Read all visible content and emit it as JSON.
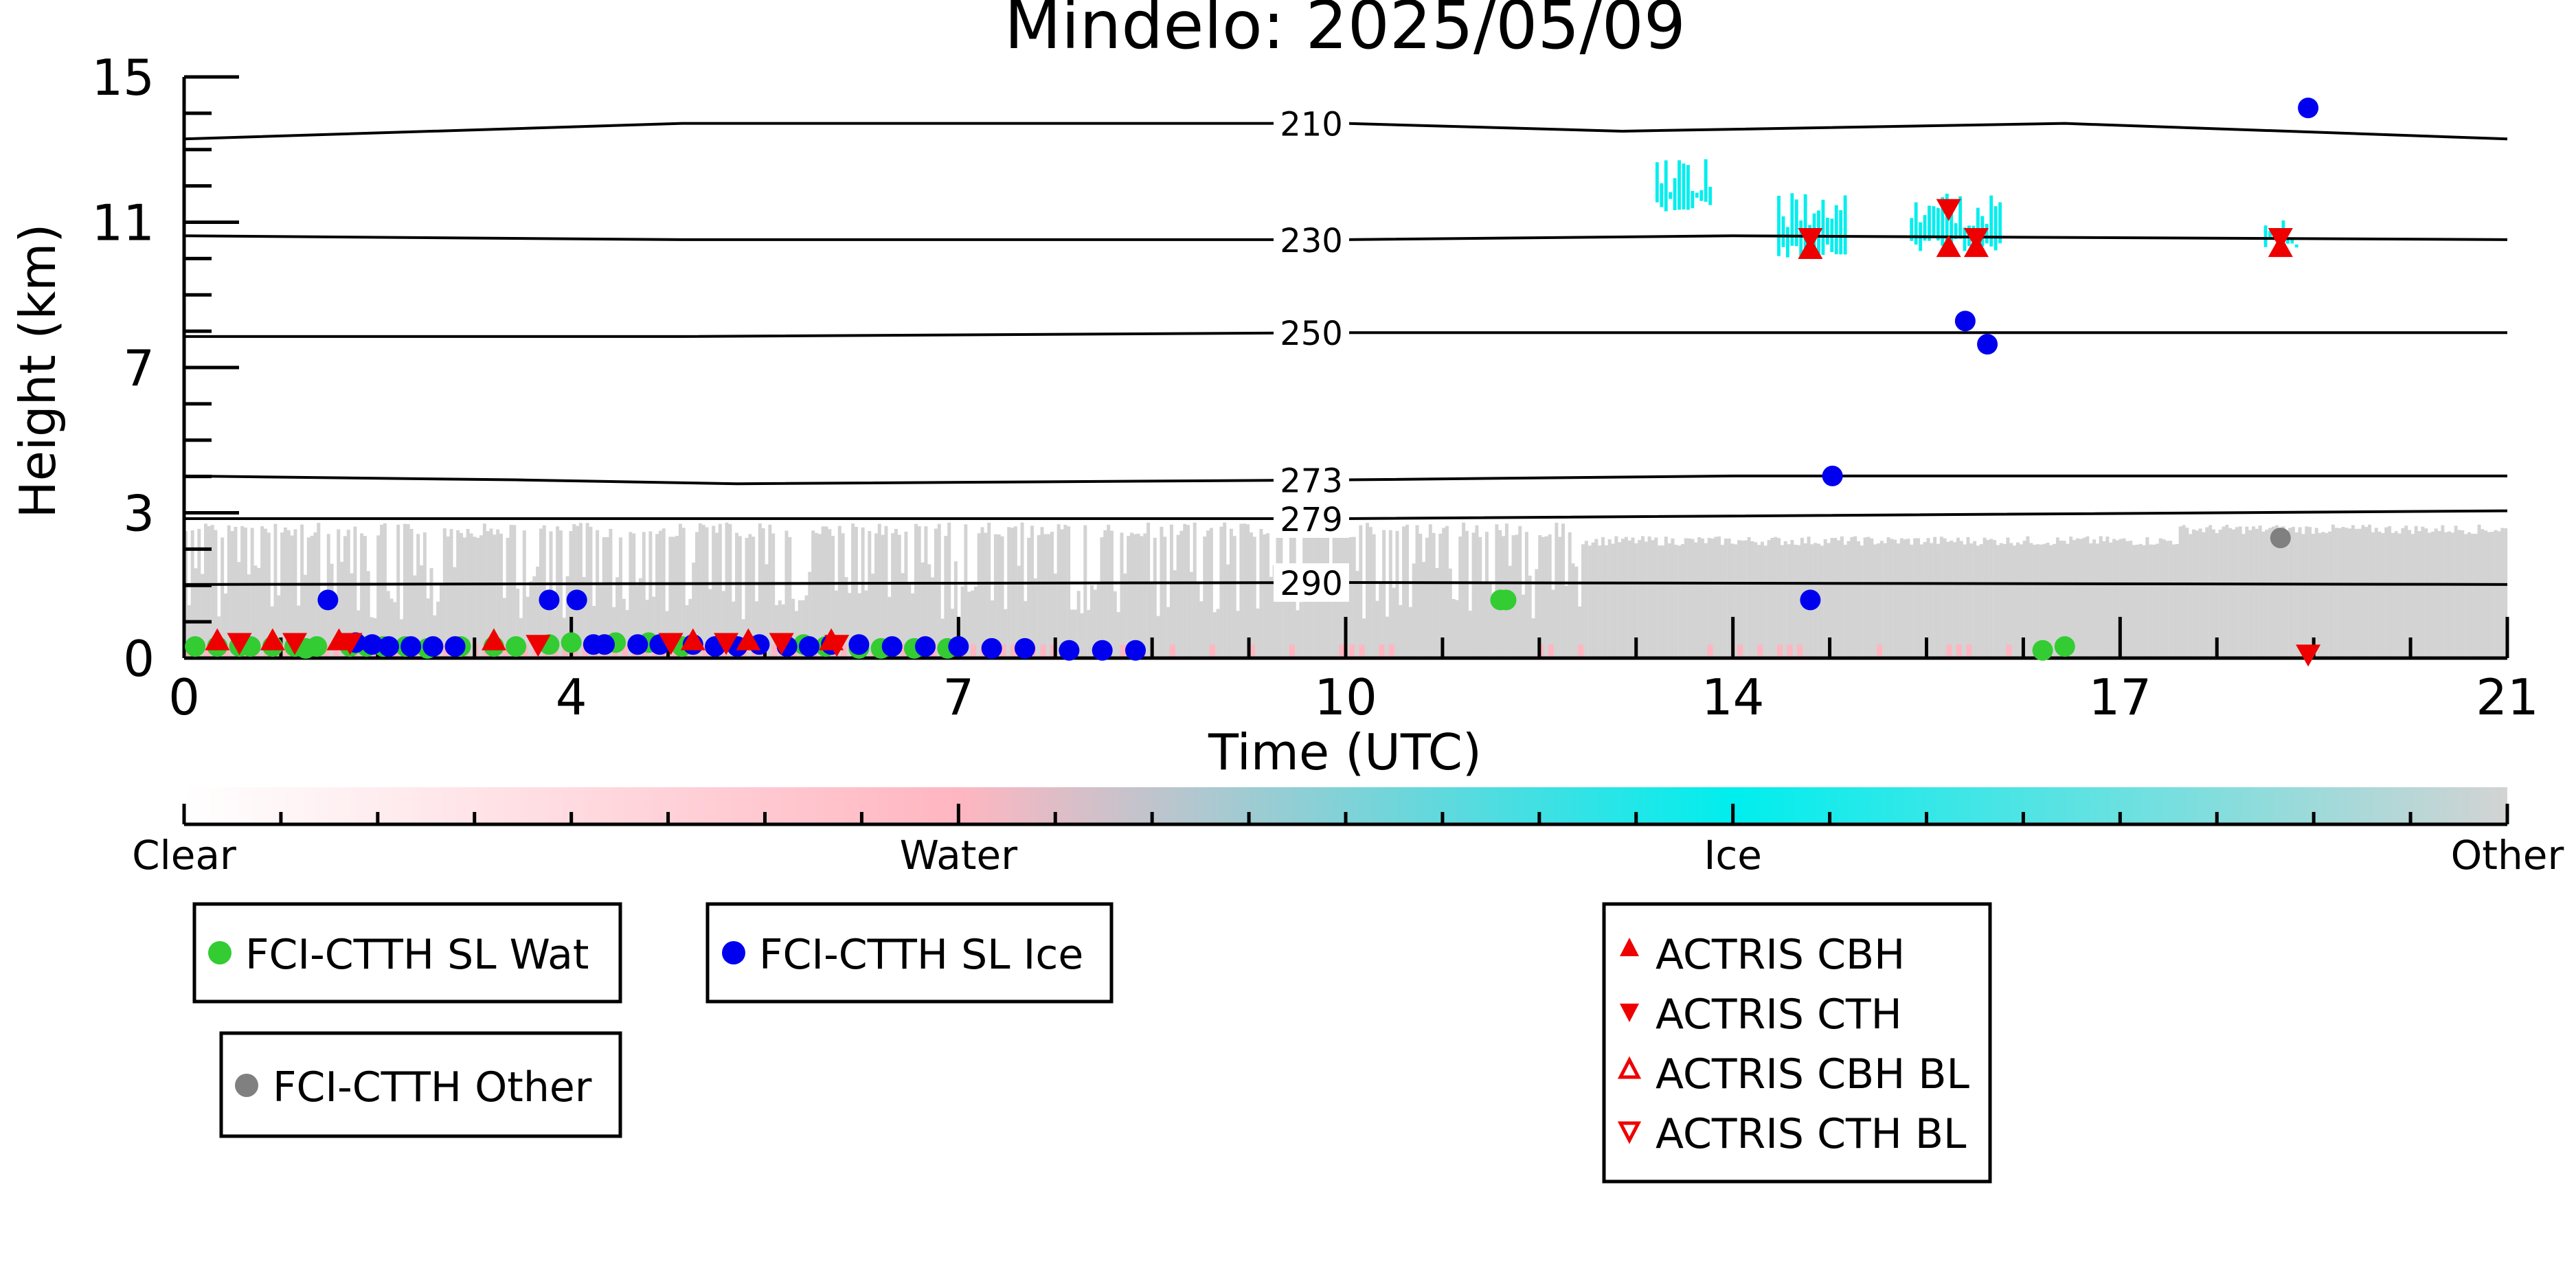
{
  "chart_data": {
    "type": "scatter",
    "title": "Mindelo: 2025/05/09",
    "xlabel": "Time (UTC)",
    "ylabel": "Height (km)",
    "xlim": [
      0,
      21
    ],
    "ylim": [
      0,
      15
    ],
    "x_tick_labels": [
      "0",
      "4",
      "7",
      "10",
      "14",
      "17",
      "21"
    ],
    "y_tick_labels": [
      "0",
      "3",
      "7",
      "11",
      "15"
    ],
    "x_major_ticks": [
      0,
      3.5,
      7,
      10.5,
      14,
      17.5,
      21
    ],
    "x_minor_step": 0.875,
    "y_major_ticks": [
      0,
      3.75,
      7.5,
      11.25,
      15
    ],
    "y_minor_step": 0.9375,
    "isotherms": [
      {
        "label": "210",
        "points": [
          [
            0,
            13.4
          ],
          [
            4.5,
            13.8
          ],
          [
            10.5,
            13.8
          ],
          [
            13,
            13.6
          ],
          [
            17,
            13.8
          ],
          [
            21,
            13.4
          ]
        ]
      },
      {
        "label": "230",
        "points": [
          [
            0,
            10.9
          ],
          [
            4.5,
            10.8
          ],
          [
            10.5,
            10.8
          ],
          [
            14,
            10.9
          ],
          [
            21,
            10.8
          ]
        ]
      },
      {
        "label": "250",
        "points": [
          [
            0,
            8.3
          ],
          [
            4.5,
            8.3
          ],
          [
            10.5,
            8.4
          ],
          [
            14,
            8.4
          ],
          [
            21,
            8.4
          ]
        ]
      },
      {
        "label": "273",
        "points": [
          [
            0,
            4.7
          ],
          [
            3,
            4.6
          ],
          [
            5,
            4.5
          ],
          [
            10.5,
            4.6
          ],
          [
            14,
            4.7
          ],
          [
            21,
            4.7
          ]
        ]
      },
      {
        "label": "279",
        "points": [
          [
            0,
            3.6
          ],
          [
            10.5,
            3.6
          ],
          [
            21,
            3.8
          ]
        ]
      },
      {
        "label": "290",
        "points": [
          [
            0,
            1.9
          ],
          [
            10.5,
            1.95
          ],
          [
            21,
            1.9
          ]
        ]
      }
    ],
    "series": [
      {
        "name": "FCI-CTTH SL Wat",
        "marker": "circle",
        "color": "#33cc33",
        "x": [
          0.1,
          0.3,
          0.5,
          0.6,
          0.8,
          1.0,
          1.1,
          1.2,
          1.5,
          1.65,
          1.8,
          2.0,
          2.2,
          2.5,
          2.8,
          3.0,
          3.3,
          3.5,
          3.9,
          4.2,
          4.5,
          5.6,
          5.8,
          6.1,
          6.3,
          6.6,
          6.9,
          11.9,
          11.95,
          16.8,
          17.0
        ],
        "y": [
          0.3,
          0.3,
          0.3,
          0.3,
          0.3,
          0.3,
          0.25,
          0.3,
          0.3,
          0.3,
          0.3,
          0.3,
          0.25,
          0.3,
          0.3,
          0.3,
          0.35,
          0.4,
          0.4,
          0.4,
          0.3,
          0.35,
          0.3,
          0.25,
          0.25,
          0.25,
          0.25,
          1.5,
          1.5,
          0.2,
          0.3
        ]
      },
      {
        "name": "FCI-CTTH SL Ice",
        "marker": "circle",
        "color": "#0000ee",
        "x": [
          1.3,
          1.55,
          1.7,
          1.85,
          2.05,
          2.25,
          2.45,
          3.3,
          3.55,
          3.7,
          3.8,
          4.1,
          4.3,
          4.6,
          4.8,
          5.0,
          5.2,
          5.45,
          5.65,
          5.85,
          6.1,
          6.4,
          6.7,
          7.0,
          7.3,
          7.6,
          8.0,
          8.3,
          8.6,
          14.7,
          14.9,
          16.1,
          16.3,
          19.2
        ],
        "y": [
          1.5,
          0.4,
          0.35,
          0.3,
          0.3,
          0.3,
          0.3,
          1.5,
          1.5,
          0.35,
          0.35,
          0.35,
          0.35,
          0.35,
          0.3,
          0.3,
          0.35,
          0.3,
          0.3,
          0.35,
          0.35,
          0.3,
          0.3,
          0.3,
          0.25,
          0.25,
          0.2,
          0.2,
          0.2,
          1.5,
          4.7,
          8.7,
          8.1,
          14.2
        ]
      },
      {
        "name": "FCI-CTTH Other",
        "marker": "circle",
        "color": "#808080",
        "x": [
          18.95
        ],
        "y": [
          3.1
        ]
      },
      {
        "name": "ACTRIS CBH",
        "marker": "triangle-up",
        "color": "#ee0000",
        "x": [
          14.7,
          15.95,
          16.2,
          18.95,
          0.3,
          0.8,
          1.4,
          2.8,
          4.6,
          5.1,
          5.85
        ],
        "y": [
          10.55,
          10.6,
          10.6,
          10.6,
          0.45,
          0.45,
          0.45,
          0.45,
          0.45,
          0.45,
          0.45
        ]
      },
      {
        "name": "ACTRIS CTH",
        "marker": "triangle-down",
        "color": "#ee0000",
        "x": [
          14.7,
          15.95,
          16.2,
          18.95,
          19.2,
          0.5,
          1.0,
          1.5,
          3.2,
          4.4,
          4.9,
          5.4,
          5.9
        ],
        "y": [
          10.85,
          11.6,
          10.85,
          10.85,
          0.1,
          0.4,
          0.4,
          0.4,
          0.35,
          0.4,
          0.4,
          0.4,
          0.35
        ]
      },
      {
        "name": "ACTRIS CBH BL",
        "marker": "triangle-up-open",
        "color": "#ee0000",
        "x": [],
        "y": []
      },
      {
        "name": "ACTRIS CTH BL",
        "marker": "triangle-down-open",
        "color": "#ee0000",
        "x": [],
        "y": []
      }
    ],
    "classification": {
      "bands": [
        {
          "class": "Other",
          "color": "#d3d3d3",
          "x_start": 0,
          "x_end": 21,
          "y_bottom": 0,
          "y_top_low": 1.0,
          "y_top_high": 3.5
        },
        {
          "class": "Ice",
          "color": "#00eeee",
          "regions": [
            [
              13.3,
              13.8,
              11.5,
              12.9
            ],
            [
              14.4,
              15.0,
              10.3,
              12.0
            ],
            [
              15.6,
              16.4,
              10.5,
              12.0
            ],
            [
              18.8,
              19.1,
              10.5,
              11.4
            ]
          ]
        },
        {
          "class": "Water",
          "color": "#ffb6c1",
          "x_start": 0,
          "x_end": 16.9,
          "height": 0.35
        }
      ]
    },
    "colorbar": {
      "labels": [
        "Clear",
        "Water",
        "Ice",
        "Other"
      ],
      "positions": [
        0,
        7,
        14,
        21
      ],
      "colors": [
        "#ffffff",
        "#ffb6c1",
        "#00eeee",
        "#d3d3d3"
      ]
    }
  }
}
